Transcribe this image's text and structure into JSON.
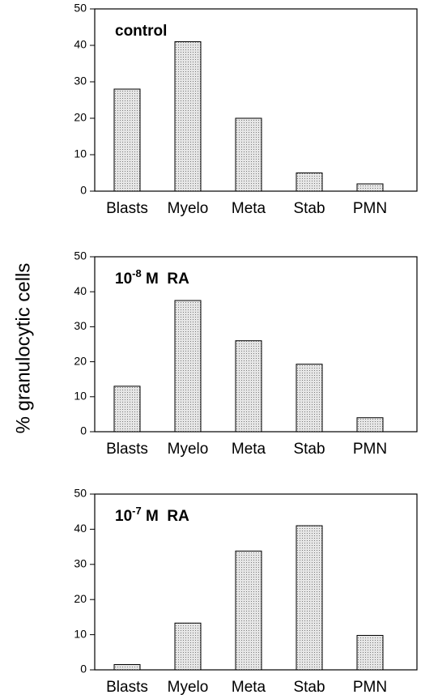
{
  "figure": {
    "ylabel": "% granulocytic cells"
  },
  "colors": {
    "bar_fill": "#e6e6e6",
    "bar_dots": "#7a7a7a",
    "stroke": "#000000"
  },
  "chart_data": [
    {
      "type": "bar",
      "label": {
        "prefix": "control",
        "exp": "",
        "suffix": ""
      },
      "categories": [
        "Blasts",
        "Myelo",
        "Meta",
        "Stab",
        "PMN"
      ],
      "values": [
        28,
        41,
        20,
        5,
        2
      ],
      "ylim": [
        0,
        50
      ],
      "yticks": [
        0,
        10,
        20,
        30,
        40,
        50
      ],
      "ylabel": "% granulocytic cells"
    },
    {
      "type": "bar",
      "label": {
        "prefix": "10",
        "exp": "-8",
        "suffix": " M  RA"
      },
      "categories": [
        "Blasts",
        "Myelo",
        "Meta",
        "Stab",
        "PMN"
      ],
      "values": [
        13,
        37.5,
        26,
        19.3,
        4
      ],
      "ylim": [
        0,
        50
      ],
      "yticks": [
        0,
        10,
        20,
        30,
        40,
        50
      ],
      "ylabel": "% granulocytic cells"
    },
    {
      "type": "bar",
      "label": {
        "prefix": "10",
        "exp": "-7",
        "suffix": " M  RA"
      },
      "categories": [
        "Blasts",
        "Myelo",
        "Meta",
        "Stab",
        "PMN"
      ],
      "values": [
        1.5,
        13.3,
        33.8,
        41,
        9.8
      ],
      "ylim": [
        0,
        50
      ],
      "yticks": [
        0,
        10,
        20,
        30,
        40,
        50
      ],
      "ylabel": "% granulocytic cells"
    }
  ]
}
